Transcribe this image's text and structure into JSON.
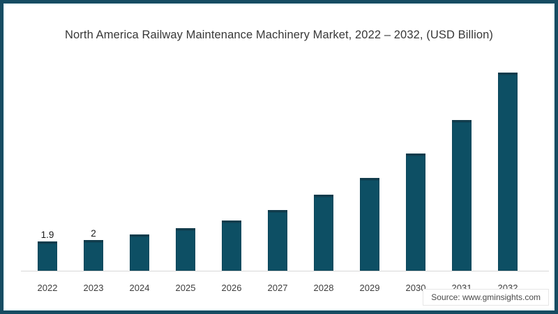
{
  "title": "North America Railway Maintenance Machinery Market, 2022 – 2032, (USD Billion)",
  "source": "Source: www.gminsights.com",
  "frame": {
    "border_color": "#174c62",
    "inner_line_color": "#e3f0f5",
    "background": "#ffffff"
  },
  "chart_data": {
    "type": "bar",
    "title": "North America Railway Maintenance Machinery Market, 2022 – 2032, (USD Billion)",
    "unit": "USD Billion",
    "categories": [
      "2022",
      "2023",
      "2024",
      "2025",
      "2026",
      "2027",
      "2028",
      "2029",
      "2030",
      "2031",
      "2032"
    ],
    "values": [
      1.9,
      2,
      2.4,
      2.8,
      3.3,
      4,
      5,
      6.1,
      7.7,
      9.9,
      13
    ],
    "data_labels": [
      "1.9",
      "2",
      "",
      "",
      "",
      "",
      "",
      "",
      "",
      "",
      ""
    ],
    "xlabel": "",
    "ylabel": "",
    "ylim": [
      0,
      13.5
    ],
    "grid": false,
    "legend": "none",
    "bar_color": "#0d4f64",
    "bar_top_edge_color": "#123c4c",
    "axis_line_color": "#d8d8d8",
    "tick_label_color": "#3d3d3d",
    "data_label_color": "#1a1a1a"
  }
}
